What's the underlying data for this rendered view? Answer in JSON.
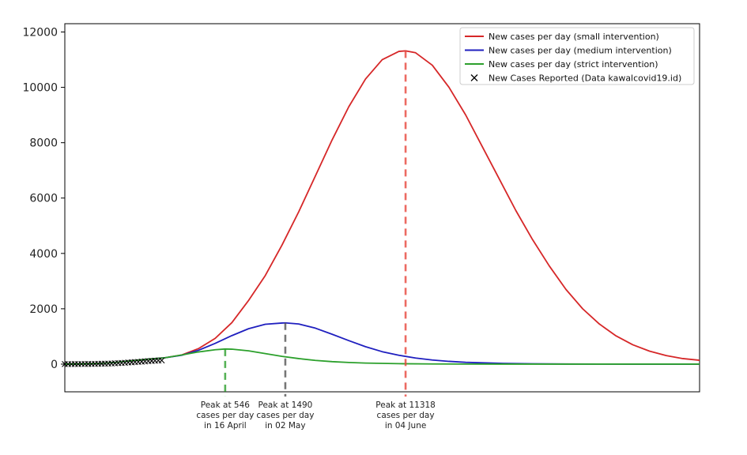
{
  "chart_data": {
    "type": "line",
    "x_axis": {
      "tick_labels_shown": false,
      "x_unit": "day (approx.)",
      "xlim": [
        0,
        190
      ]
    },
    "ylim": [
      -1000,
      12300
    ],
    "y_ticks": [
      {
        "value": 12000,
        "label": "12000"
      },
      {
        "value": 10000,
        "label": "10000"
      },
      {
        "value": 8000,
        "label": "8000"
      },
      {
        "value": 6000,
        "label": "6000"
      },
      {
        "value": 4000,
        "label": "4000"
      },
      {
        "value": 2000,
        "label": "2000"
      },
      {
        "value": 0,
        "label": "0"
      }
    ],
    "grid": false,
    "legend_position": "top-right",
    "series": [
      {
        "name": "New cases per day (small intervention)",
        "color": "#d62728",
        "kind": "line",
        "x": [
          0,
          5,
          10,
          15,
          20,
          25,
          30,
          35,
          40,
          45,
          50,
          55,
          60,
          65,
          70,
          75,
          80,
          85,
          90,
          95,
          100,
          102,
          105,
          110,
          115,
          120,
          125,
          130,
          135,
          140,
          145,
          150,
          155,
          160,
          165,
          170,
          175,
          180,
          185,
          190
        ],
        "values": [
          0,
          8,
          25,
          60,
          120,
          180,
          230,
          330,
          560,
          930,
          1500,
          2300,
          3200,
          4300,
          5500,
          6800,
          8100,
          9300,
          10300,
          11000,
          11300,
          11318,
          11250,
          10800,
          10000,
          9000,
          7850,
          6700,
          5550,
          4500,
          3550,
          2700,
          2000,
          1450,
          1020,
          700,
          470,
          310,
          200,
          140
        ]
      },
      {
        "name": "New cases per day (medium intervention)",
        "color": "#1f1fbf",
        "kind": "line",
        "x": [
          0,
          5,
          10,
          15,
          20,
          25,
          30,
          35,
          40,
          45,
          50,
          55,
          60,
          65,
          66,
          70,
          75,
          80,
          85,
          90,
          95,
          100,
          105,
          110,
          115,
          120,
          130,
          140,
          150,
          160,
          170,
          180,
          190
        ],
        "values": [
          0,
          8,
          25,
          60,
          120,
          180,
          230,
          320,
          500,
          750,
          1030,
          1280,
          1440,
          1485,
          1490,
          1450,
          1300,
          1080,
          850,
          630,
          450,
          320,
          220,
          150,
          100,
          65,
          30,
          12,
          5,
          2,
          1,
          0,
          0
        ]
      },
      {
        "name": "New cases per day (strict intervention)",
        "color": "#2ca02c",
        "kind": "line",
        "x": [
          0,
          5,
          10,
          15,
          20,
          25,
          30,
          35,
          40,
          45,
          48,
          50,
          55,
          60,
          65,
          70,
          75,
          80,
          85,
          90,
          100,
          110,
          120,
          130,
          140,
          150,
          160,
          170,
          180,
          190
        ],
        "values": [
          0,
          8,
          25,
          60,
          120,
          180,
          230,
          330,
          440,
          520,
          546,
          540,
          480,
          380,
          280,
          200,
          135,
          90,
          60,
          38,
          16,
          6,
          3,
          1,
          0,
          0,
          0,
          0,
          0,
          0
        ]
      },
      {
        "name": "New Cases Reported (Data kawalcovid19.id)",
        "color": "#000000",
        "kind": "scatter",
        "marker": "x",
        "x": [
          0,
          1,
          2,
          3,
          4,
          5,
          6,
          7,
          8,
          9,
          10,
          11,
          12,
          13,
          14,
          15,
          16,
          17,
          18,
          19,
          20,
          21,
          22,
          23,
          24,
          25,
          26,
          27,
          28,
          29
        ],
        "values": [
          2,
          3,
          2,
          4,
          3,
          5,
          6,
          8,
          7,
          10,
          12,
          15,
          18,
          21,
          25,
          30,
          38,
          42,
          50,
          60,
          65,
          75,
          82,
          90,
          100,
          110,
          115,
          125,
          130,
          135
        ]
      }
    ],
    "peak_markers": [
      {
        "series_index": 2,
        "x": 48,
        "value": 546,
        "color": "#2ca02c",
        "lines": [
          "Peak at 546",
          "cases per day",
          "in 16 April"
        ]
      },
      {
        "series_index": 1,
        "x": 66,
        "value": 1490,
        "color": "#555555",
        "lines": [
          "Peak at 1490",
          "cases per day",
          "in 02 May"
        ]
      },
      {
        "series_index": 0,
        "x": 102,
        "value": 11318,
        "color": "#e8453c",
        "lines": [
          "Peak at 11318",
          "cases per day",
          "in 04 June"
        ]
      }
    ]
  }
}
